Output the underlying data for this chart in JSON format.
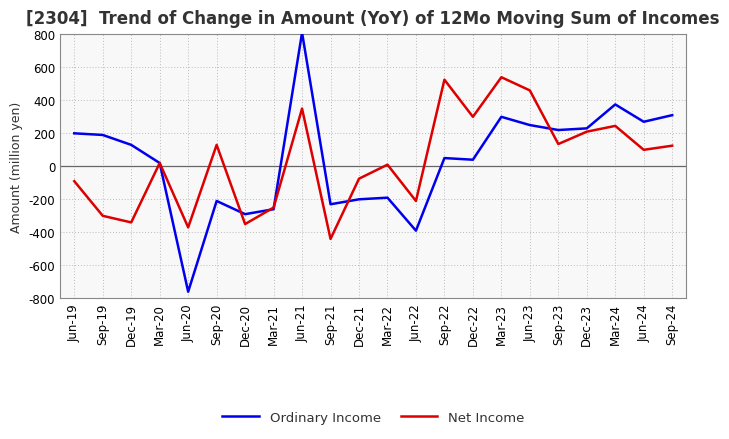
{
  "title": "[2304]  Trend of Change in Amount (YoY) of 12Mo Moving Sum of Incomes",
  "ylabel": "Amount (million yen)",
  "x_labels": [
    "Jun-19",
    "Sep-19",
    "Dec-19",
    "Mar-20",
    "Jun-20",
    "Sep-20",
    "Dec-20",
    "Mar-21",
    "Jun-21",
    "Sep-21",
    "Dec-21",
    "Mar-22",
    "Jun-22",
    "Sep-22",
    "Dec-22",
    "Mar-23",
    "Jun-23",
    "Sep-23",
    "Dec-23",
    "Mar-24",
    "Jun-24",
    "Sep-24"
  ],
  "ordinary_income": [
    200,
    190,
    130,
    20,
    -760,
    -210,
    -290,
    -260,
    810,
    -230,
    -200,
    -190,
    -390,
    50,
    40,
    300,
    250,
    220,
    230,
    375,
    270,
    310
  ],
  "net_income": [
    -90,
    -300,
    -340,
    20,
    -370,
    130,
    -350,
    -250,
    350,
    -440,
    -75,
    10,
    -210,
    525,
    300,
    540,
    460,
    135,
    210,
    245,
    100,
    125
  ],
  "ylim": [
    -800,
    800
  ],
  "yticks": [
    -800,
    -600,
    -400,
    -200,
    0,
    200,
    400,
    600,
    800
  ],
  "ordinary_color": "#0000ee",
  "net_color": "#dd0000",
  "background_color": "#ffffff",
  "plot_bg_color": "#f8f8f8",
  "grid_color": "#bbbbbb",
  "title_color": "#333333",
  "spine_color": "#888888",
  "title_fontsize": 12,
  "axis_label_fontsize": 9,
  "tick_fontsize": 8.5,
  "legend_fontsize": 9.5,
  "line_width": 1.8
}
